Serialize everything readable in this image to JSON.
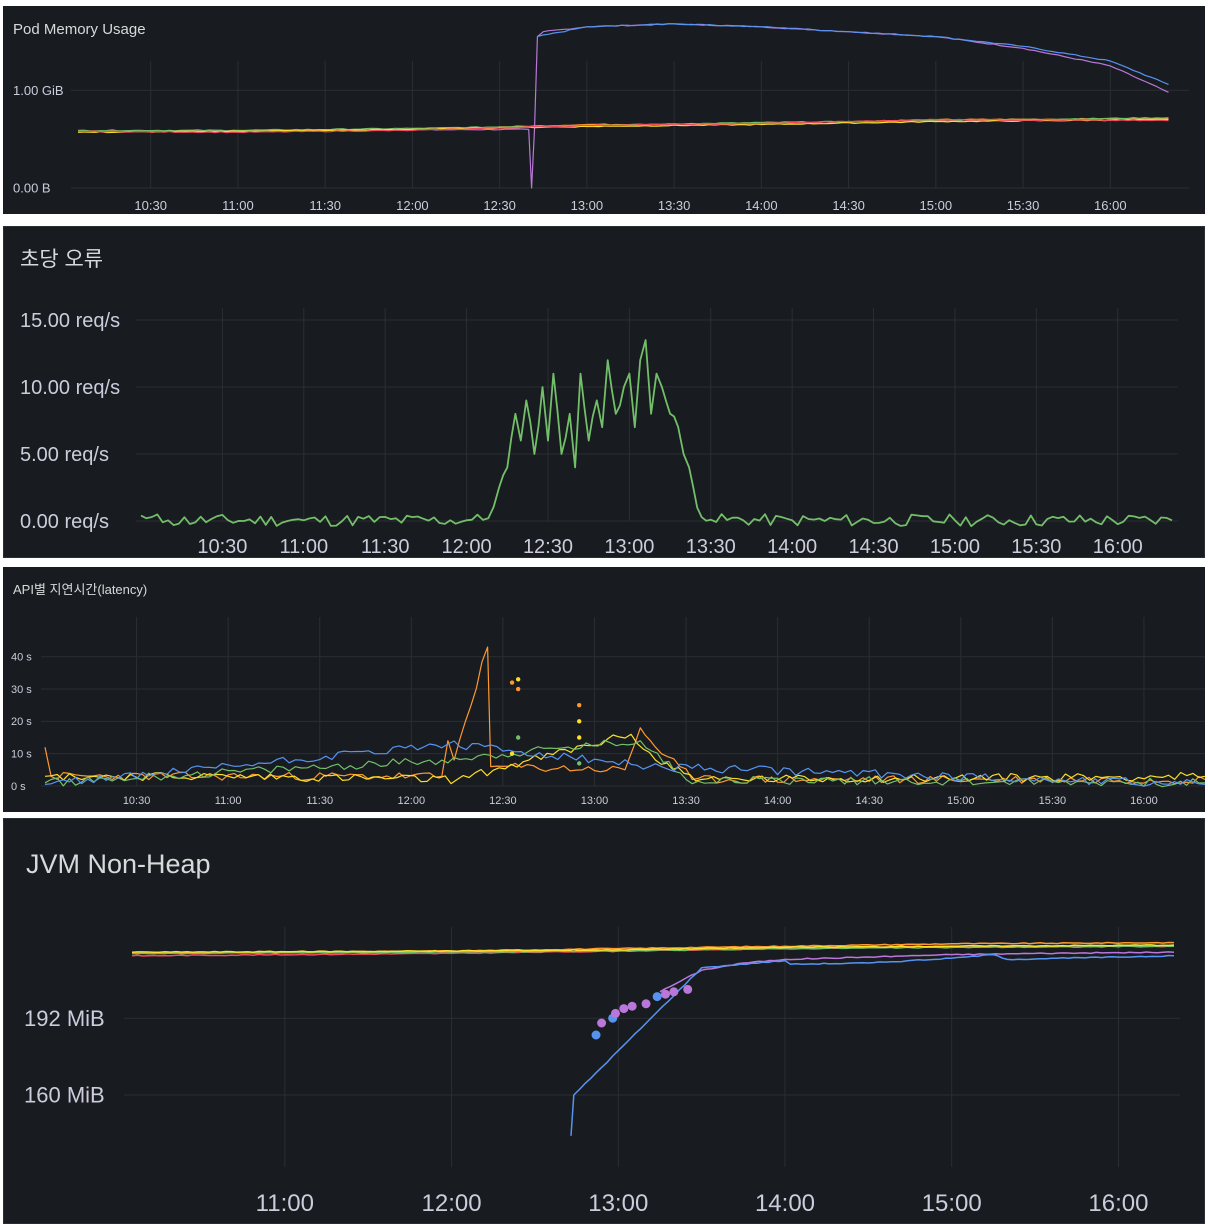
{
  "theme": {
    "background": "#181b1f",
    "grid": "#2b2e34",
    "axis_text": "#ccccdc",
    "title_text": "#d8d9da"
  },
  "panels": {
    "pod_memory": {
      "title": "Pod Memory Usage",
      "y_ticks": [
        "1.00 GiB",
        "0.00 B"
      ],
      "x_ticks": [
        "10:30",
        "11:00",
        "11:30",
        "12:00",
        "12:30",
        "13:00",
        "13:30",
        "14:00",
        "14:30",
        "15:00",
        "15:30",
        "16:00"
      ]
    },
    "errors": {
      "title": "초당 오류",
      "y_ticks": [
        "15.00 req/s",
        "10.00 req/s",
        "5.00 req/s",
        "0.00 req/s"
      ],
      "x_ticks": [
        "10:30",
        "11:00",
        "11:30",
        "12:00",
        "12:30",
        "13:00",
        "13:30",
        "14:00",
        "14:30",
        "15:00",
        "15:30",
        "16:00"
      ]
    },
    "latency": {
      "title": "API별 지연시간(latency)",
      "y_ticks": [
        "40 s",
        "30 s",
        "20 s",
        "10 s",
        "0 s"
      ],
      "x_ticks": [
        "10:30",
        "11:00",
        "11:30",
        "12:00",
        "12:30",
        "13:00",
        "13:30",
        "14:00",
        "14:30",
        "15:00",
        "15:30",
        "16:00"
      ]
    },
    "jvm": {
      "title": "JVM Non-Heap",
      "y_ticks": [
        "192 MiB",
        "160 MiB"
      ],
      "x_ticks": [
        "11:00",
        "12:00",
        "13:00",
        "14:00",
        "15:00",
        "16:00"
      ]
    }
  },
  "chart_data": [
    {
      "type": "line",
      "title": "Pod Memory Usage",
      "ylim_gib": [
        0,
        1.3
      ],
      "series": [
        {
          "color": "#b877d9",
          "points": [
            [
              "10:05",
              0.58
            ],
            [
              "12:40",
              0.6
            ],
            [
              "12:41",
              0
            ],
            [
              "12:42",
              0.6
            ],
            [
              "12:43",
              1.55
            ],
            [
              "12:45",
              1.6
            ],
            [
              "13:00",
              1.65
            ],
            [
              "13:30",
              1.68
            ],
            [
              "14:00",
              1.65
            ],
            [
              "14:30",
              1.6
            ],
            [
              "15:00",
              1.55
            ],
            [
              "15:30",
              1.43
            ],
            [
              "16:00",
              1.25
            ],
            [
              "16:20",
              0.98
            ]
          ]
        },
        {
          "color": "#5794f2",
          "points": [
            [
              "12:43",
              1.55
            ],
            [
              "13:00",
              1.65
            ],
            [
              "13:30",
              1.68
            ],
            [
              "14:00",
              1.65
            ],
            [
              "14:30",
              1.6
            ],
            [
              "15:00",
              1.55
            ],
            [
              "15:30",
              1.45
            ],
            [
              "16:00",
              1.3
            ],
            [
              "16:20",
              1.06
            ]
          ]
        },
        {
          "color": "#ff9830",
          "points": [
            [
              "10:05",
              0.58
            ],
            [
              "11:00",
              0.58
            ],
            [
              "12:00",
              0.6
            ],
            [
              "13:00",
              0.65
            ],
            [
              "14:00",
              0.66
            ],
            [
              "15:00",
              0.7
            ],
            [
              "16:20",
              0.71
            ]
          ]
        },
        {
          "color": "#73bf69",
          "points": [
            [
              "10:05",
              0.59
            ],
            [
              "11:00",
              0.59
            ],
            [
              "12:00",
              0.61
            ],
            [
              "13:00",
              0.64
            ],
            [
              "14:00",
              0.67
            ],
            [
              "15:00",
              0.69
            ],
            [
              "16:20",
              0.72
            ]
          ]
        },
        {
          "color": "#fade2a",
          "points": [
            [
              "10:05",
              0.57
            ],
            [
              "11:00",
              0.58
            ],
            [
              "12:00",
              0.6
            ],
            [
              "13:00",
              0.63
            ],
            [
              "14:00",
              0.65
            ],
            [
              "15:00",
              0.68
            ],
            [
              "16:20",
              0.7
            ]
          ]
        },
        {
          "color": "#f2495c",
          "points": [
            [
              "10:05",
              0.58
            ],
            [
              "11:00",
              0.57
            ],
            [
              "12:00",
              0.59
            ],
            [
              "13:00",
              0.64
            ],
            [
              "14:00",
              0.66
            ],
            [
              "15:00",
              0.7
            ],
            [
              "16:20",
              0.69
            ]
          ]
        }
      ]
    },
    {
      "type": "line",
      "title": "초당 오류",
      "ylim": [
        0,
        15
      ],
      "series": [
        {
          "color": "#73bf69",
          "points": [
            [
              "10:00",
              0.4
            ],
            [
              "10:02",
              0.2
            ],
            [
              "10:10",
              0.05
            ],
            [
              "11:00",
              0.05
            ],
            [
              "12:00",
              0.05
            ],
            [
              "12:08",
              0.2
            ],
            [
              "12:12",
              2.5
            ],
            [
              "12:15",
              4
            ],
            [
              "12:18",
              8
            ],
            [
              "12:20",
              6
            ],
            [
              "12:22",
              9
            ],
            [
              "12:25",
              5
            ],
            [
              "12:28",
              10
            ],
            [
              "12:30",
              6
            ],
            [
              "12:32",
              11
            ],
            [
              "12:35",
              5
            ],
            [
              "12:38",
              8
            ],
            [
              "12:40",
              4
            ],
            [
              "12:42",
              11
            ],
            [
              "12:45",
              6
            ],
            [
              "12:48",
              9
            ],
            [
              "12:50",
              7
            ],
            [
              "12:52",
              12
            ],
            [
              "12:55",
              8
            ],
            [
              "12:58",
              10
            ],
            [
              "13:00",
              11
            ],
            [
              "13:02",
              7
            ],
            [
              "13:04",
              12
            ],
            [
              "13:06",
              13.5
            ],
            [
              "13:08",
              8
            ],
            [
              "13:10",
              11
            ],
            [
              "13:12",
              10
            ],
            [
              "13:15",
              8
            ],
            [
              "13:18",
              7
            ],
            [
              "13:20",
              5
            ],
            [
              "13:22",
              4
            ],
            [
              "13:25",
              1
            ],
            [
              "13:30",
              0.1
            ],
            [
              "14:00",
              0.05
            ],
            [
              "15:00",
              0.05
            ],
            [
              "16:20",
              0.05
            ]
          ]
        }
      ]
    },
    {
      "type": "line",
      "title": "API별 지연시간(latency)",
      "ylim_s": [
        0,
        43
      ],
      "series": [
        {
          "color": "#ff9830",
          "points": [
            [
              "10:00",
              12
            ],
            [
              "10:02",
              3
            ],
            [
              "12:10",
              3
            ],
            [
              "12:12",
              14
            ],
            [
              "12:14",
              8
            ],
            [
              "12:25",
              43
            ],
            [
              "12:26",
              6
            ],
            [
              "13:10",
              5
            ],
            [
              "13:15",
              18
            ],
            [
              "13:20",
              12
            ],
            [
              "13:28",
              6
            ],
            [
              "13:32",
              2
            ],
            [
              "16:20",
              2
            ]
          ]
        },
        {
          "color": "#fade2a",
          "points": [
            [
              "10:00",
              3
            ],
            [
              "11:00",
              3
            ],
            [
              "12:15",
              2
            ],
            [
              "13:12",
              16
            ],
            [
              "13:20",
              8
            ],
            [
              "13:35",
              2
            ],
            [
              "16:20",
              3
            ]
          ]
        },
        {
          "color": "#73bf69",
          "points": [
            [
              "10:00",
              1
            ],
            [
              "12:10",
              8
            ],
            [
              "13:15",
              14
            ],
            [
              "13:30",
              2
            ],
            [
              "16:20",
              1
            ]
          ]
        },
        {
          "color": "#5794f2",
          "points": [
            [
              "10:00",
              0.5
            ],
            [
              "12:12",
              13
            ],
            [
              "13:18",
              6
            ],
            [
              "16:20",
              0.5
            ]
          ]
        }
      ],
      "points": [
        {
          "color": "#ff9830",
          "x": "12:33",
          "y": 32
        },
        {
          "color": "#ff9830",
          "x": "12:35",
          "y": 30
        },
        {
          "color": "#fade2a",
          "x": "12:35",
          "y": 33
        },
        {
          "color": "#fade2a",
          "x": "12:33",
          "y": 10
        },
        {
          "color": "#73bf69",
          "x": "12:35",
          "y": 15
        },
        {
          "color": "#fade2a",
          "x": "12:55",
          "y": 20
        },
        {
          "color": "#ff9830",
          "x": "12:55",
          "y": 25
        },
        {
          "color": "#fade2a",
          "x": "12:55",
          "y": 15
        },
        {
          "color": "#73bf69",
          "x": "12:55",
          "y": 7
        }
      ]
    },
    {
      "type": "line",
      "title": "JVM Non-Heap",
      "ylim_mib": [
        130,
        230
      ],
      "series": [
        {
          "color": "#ff9830",
          "points": [
            [
              "10:05",
              219
            ],
            [
              "12:00",
              220
            ],
            [
              "13:00",
              221
            ],
            [
              "14:00",
              222
            ],
            [
              "15:00",
              223
            ],
            [
              "16:20",
              223.5
            ]
          ]
        },
        {
          "color": "#f2495c",
          "points": [
            [
              "10:05",
              218
            ],
            [
              "12:00",
              219
            ],
            [
              "13:00",
              220
            ],
            [
              "14:00",
              221
            ],
            [
              "15:00",
              222
            ],
            [
              "16:20",
              222
            ]
          ]
        },
        {
          "color": "#73bf69",
          "points": [
            [
              "10:05",
              219
            ],
            [
              "12:00",
              219.5
            ],
            [
              "13:00",
              220
            ],
            [
              "14:00",
              221
            ],
            [
              "15:00",
              221.5
            ],
            [
              "16:20",
              222
            ]
          ]
        },
        {
          "color": "#fade2a",
          "points": [
            [
              "10:05",
              219.5
            ],
            [
              "12:00",
              220
            ],
            [
              "13:00",
              220.5
            ],
            [
              "14:00",
              221.5
            ],
            [
              "15:00",
              222
            ],
            [
              "16:20",
              222.5
            ]
          ]
        },
        {
          "color": "#b877d9",
          "points": [
            [
              "13:15",
              203
            ],
            [
              "13:30",
              212
            ],
            [
              "13:45",
              215
            ],
            [
              "14:00",
              216.5
            ],
            [
              "14:30",
              217.5
            ],
            [
              "15:00",
              218.5
            ],
            [
              "15:30",
              219
            ],
            [
              "16:20",
              219.5
            ]
          ]
        },
        {
          "color": "#5794f2",
          "points": [
            [
              "12:43",
              143
            ],
            [
              "12:44",
              160
            ],
            [
              "13:30",
              213
            ],
            [
              "14:00",
              216
            ],
            [
              "14:02",
              214.5
            ],
            [
              "14:30",
              215
            ],
            [
              "15:00",
              217
            ],
            [
              "15:15",
              218.5
            ],
            [
              "15:20",
              216.5
            ],
            [
              "16:20",
              218
            ]
          ]
        }
      ],
      "points": [
        {
          "color": "#5794f2",
          "x": "12:52",
          "y": 185
        },
        {
          "color": "#b877d9",
          "x": "12:54",
          "y": 190
        },
        {
          "color": "#5794f2",
          "x": "12:58",
          "y": 192
        },
        {
          "color": "#b877d9",
          "x": "12:59",
          "y": 194
        },
        {
          "color": "#b877d9",
          "x": "13:02",
          "y": 196
        },
        {
          "color": "#b877d9",
          "x": "13:05",
          "y": 197
        },
        {
          "color": "#b877d9",
          "x": "13:10",
          "y": 198
        },
        {
          "color": "#5794f2",
          "x": "13:14",
          "y": 201
        },
        {
          "color": "#b877d9",
          "x": "13:17",
          "y": 202
        },
        {
          "color": "#b877d9",
          "x": "13:20",
          "y": 203
        },
        {
          "color": "#b877d9",
          "x": "13:25",
          "y": 204
        }
      ]
    }
  ]
}
